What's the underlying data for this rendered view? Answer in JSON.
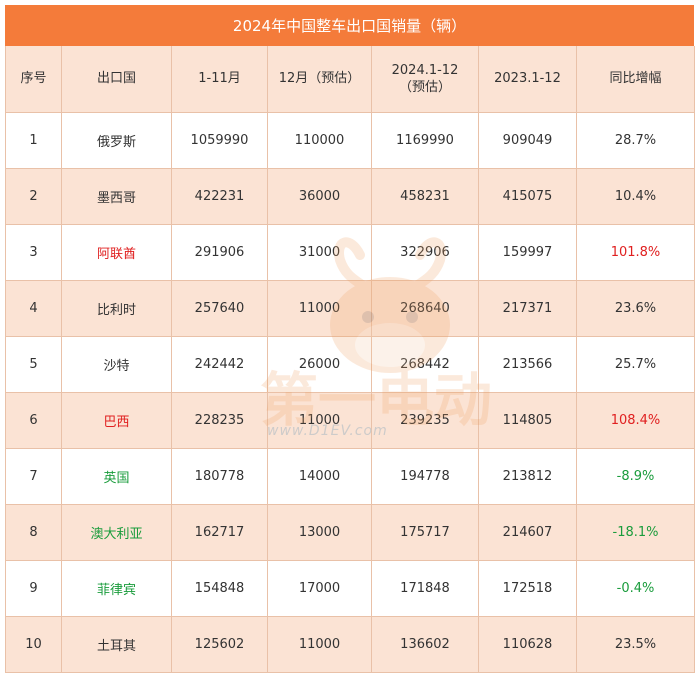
{
  "chart_data": {
    "type": "table",
    "title": "2024年中国整车出口国销量（辆）",
    "columns": [
      "序号",
      "出口国",
      "1-11月",
      "12月（预估）",
      "2024.1-12（预估）",
      "2023.1-12",
      "同比增幅"
    ],
    "rows": [
      {
        "rank": "1",
        "country": "俄罗斯",
        "jan_nov": "1059990",
        "dec": "110000",
        "y2024": "1169990",
        "y2023": "909049",
        "yoy": "28.7%",
        "country_color": "default",
        "yoy_color": "default"
      },
      {
        "rank": "2",
        "country": "墨西哥",
        "jan_nov": "422231",
        "dec": "36000",
        "y2024": "458231",
        "y2023": "415075",
        "yoy": "10.4%",
        "country_color": "default",
        "yoy_color": "default"
      },
      {
        "rank": "3",
        "country": "阿联酋",
        "jan_nov": "291906",
        "dec": "31000",
        "y2024": "322906",
        "y2023": "159997",
        "yoy": "101.8%",
        "country_color": "red",
        "yoy_color": "red"
      },
      {
        "rank": "4",
        "country": "比利时",
        "jan_nov": "257640",
        "dec": "11000",
        "y2024": "268640",
        "y2023": "217371",
        "yoy": "23.6%",
        "country_color": "default",
        "yoy_color": "default"
      },
      {
        "rank": "5",
        "country": "沙特",
        "jan_nov": "242442",
        "dec": "26000",
        "y2024": "268442",
        "y2023": "213566",
        "yoy": "25.7%",
        "country_color": "default",
        "yoy_color": "default"
      },
      {
        "rank": "6",
        "country": "巴西",
        "jan_nov": "228235",
        "dec": "11000",
        "y2024": "239235",
        "y2023": "114805",
        "yoy": "108.4%",
        "country_color": "red",
        "yoy_color": "red"
      },
      {
        "rank": "7",
        "country": "英国",
        "jan_nov": "180778",
        "dec": "14000",
        "y2024": "194778",
        "y2023": "213812",
        "yoy": "-8.9%",
        "country_color": "green",
        "yoy_color": "green"
      },
      {
        "rank": "8",
        "country": "澳大利亚",
        "jan_nov": "162717",
        "dec": "13000",
        "y2024": "175717",
        "y2023": "214607",
        "yoy": "-18.1%",
        "country_color": "green",
        "yoy_color": "green"
      },
      {
        "rank": "9",
        "country": "菲律宾",
        "jan_nov": "154848",
        "dec": "17000",
        "y2024": "171848",
        "y2023": "172518",
        "yoy": "-0.4%",
        "country_color": "green",
        "yoy_color": "green"
      },
      {
        "rank": "10",
        "country": "土耳其",
        "jan_nov": "125602",
        "dec": "11000",
        "y2024": "136602",
        "y2023": "110628",
        "yoy": "23.5%",
        "country_color": "default",
        "yoy_color": "default"
      }
    ]
  },
  "colors": {
    "header_bar": "#f47b3a",
    "band": "#fbe3d4",
    "border": "#e9c1a8",
    "highlight_up": "#e02020",
    "highlight_down": "#1a9c3c"
  },
  "watermark": {
    "logo_text": "第一电动",
    "url": "www.D1EV.com"
  }
}
